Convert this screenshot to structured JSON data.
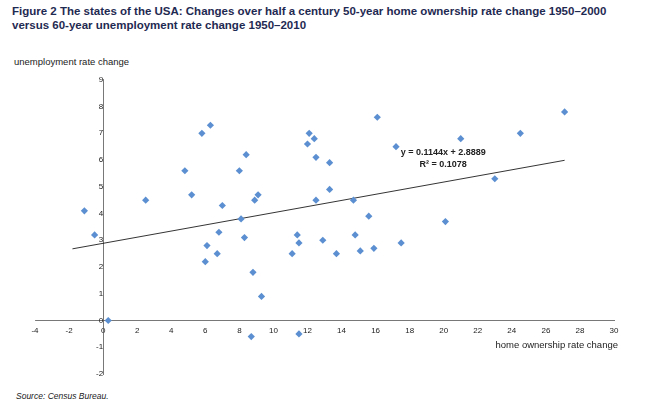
{
  "chart_data": {
    "type": "scatter",
    "title": "Figure 2   The states of the USA: Changes over half a century 50-year home ownership rate change 1950–2000 versus 60-year unemployment rate change 1950–2010",
    "x_label": "home ownership rate change",
    "y_label": "unemployment rate change",
    "source": "Source: Census Bureau.",
    "annotations": [
      "y = 0.1144x + 2.8889",
      "R² = 0.1078"
    ],
    "x": [
      -1.1,
      -0.5,
      0.3,
      2.5,
      4.8,
      5.2,
      5.8,
      6.3,
      6.1,
      6.0,
      6.8,
      6.7,
      7.0,
      8.0,
      8.1,
      8.4,
      8.3,
      8.9,
      9.1,
      8.8,
      8.7,
      9.3,
      11.1,
      11.4,
      11.5,
      11.5,
      12.0,
      12.1,
      12.4,
      12.5,
      12.5,
      12.9,
      13.3,
      13.3,
      13.7,
      14.7,
      14.8,
      15.1,
      15.6,
      15.9,
      16.1,
      17.2,
      17.5,
      20.1,
      21.0,
      23.0,
      24.5,
      27.1
    ],
    "values": [
      4.1,
      3.2,
      0.0,
      4.5,
      5.6,
      4.7,
      7.0,
      7.3,
      2.8,
      2.2,
      3.3,
      2.5,
      4.3,
      5.6,
      3.8,
      6.2,
      3.1,
      4.5,
      4.7,
      1.8,
      -0.6,
      0.9,
      2.5,
      3.2,
      2.9,
      -0.5,
      6.6,
      7.0,
      6.8,
      4.5,
      6.1,
      3.0,
      5.9,
      4.9,
      2.5,
      4.5,
      3.2,
      2.6,
      3.9,
      2.7,
      7.6,
      6.5,
      2.9,
      3.7,
      6.8,
      5.3,
      7.0,
      7.8
    ],
    "color": "#5b8fd1",
    "marker": "diamond",
    "trendline": {
      "x": [
        -1.8,
        27.1
      ],
      "values": [
        2.68,
        5.99
      ],
      "color": "#000000"
    },
    "xlim": [
      -4,
      30
    ],
    "xticks": [
      -4,
      -2,
      0,
      2,
      4,
      6,
      8,
      10,
      12,
      14,
      16,
      18,
      20,
      22,
      24,
      26,
      28,
      30
    ],
    "ylim": [
      -2,
      9
    ],
    "yticks": [
      -2,
      -1,
      0,
      1,
      2,
      3,
      4,
      5,
      6,
      7,
      8,
      9
    ],
    "grid": false
  }
}
